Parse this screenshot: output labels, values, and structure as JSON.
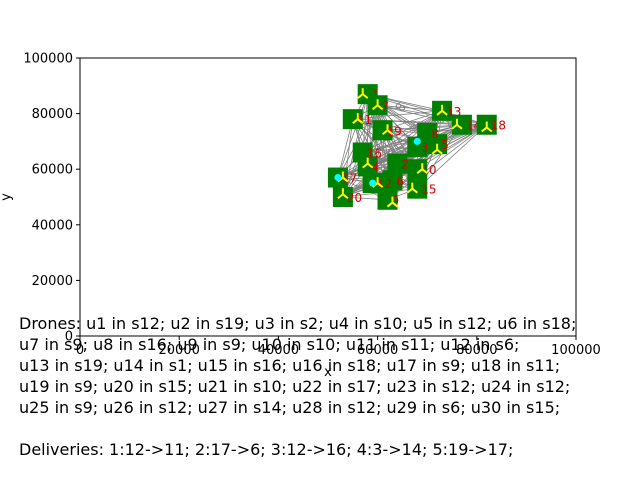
{
  "chart_data": {
    "type": "scatter",
    "title": "",
    "xlabel": "x",
    "ylabel": "y",
    "xlim": [
      0,
      100000
    ],
    "ylim": [
      0,
      100000
    ],
    "x_ticks": [
      "0",
      "20000",
      "40000",
      "60000",
      "80000",
      "100000"
    ],
    "y_ticks": [
      "0",
      "20000",
      "40000",
      "60000",
      "80000",
      "100000"
    ],
    "grid": false,
    "stations": [
      {
        "label": "1",
        "x": 58000,
        "y": 87000
      },
      {
        "label": "2",
        "x": 64000,
        "y": 62000
      },
      {
        "label": "3",
        "x": 68000,
        "y": 68000
      },
      {
        "label": "4",
        "x": 58000,
        "y": 61000
      },
      {
        "label": "5",
        "x": 72000,
        "y": 69000
      },
      {
        "label": "6",
        "x": 63000,
        "y": 56000
      },
      {
        "label": "7",
        "x": 60000,
        "y": 83000
      },
      {
        "label": "8",
        "x": 70000,
        "y": 73000
      },
      {
        "label": "9",
        "x": 62000,
        "y": 49000
      },
      {
        "label": "10",
        "x": 68000,
        "y": 60000
      },
      {
        "label": "11",
        "x": 55000,
        "y": 78000
      },
      {
        "label": "12",
        "x": 59000,
        "y": 55000
      },
      {
        "label": "13",
        "x": 73000,
        "y": 81000
      },
      {
        "label": "14",
        "x": 77000,
        "y": 76000
      },
      {
        "label": "15",
        "x": 68000,
        "y": 53000
      },
      {
        "label": "16",
        "x": 57000,
        "y": 66000
      },
      {
        "label": "17",
        "x": 52000,
        "y": 57000
      },
      {
        "label": "18",
        "x": 82000,
        "y": 76000
      },
      {
        "label": "19",
        "x": 61000,
        "y": 74000
      },
      {
        "label": "20",
        "x": 53000,
        "y": 50000
      }
    ],
    "station_color": "#008000",
    "station_label_color": "#d40000",
    "edge_color": "#808080",
    "drone_marker_color": "#ffff00",
    "drone_accent_color": "#00ffff",
    "drones": [
      {
        "x": 57000,
        "y": 87000
      },
      {
        "x": 62000,
        "y": 74000
      },
      {
        "x": 53000,
        "y": 57000
      },
      {
        "x": 69000,
        "y": 60000
      },
      {
        "x": 72000,
        "y": 67000
      },
      {
        "x": 60000,
        "y": 55000
      },
      {
        "x": 63000,
        "y": 48000
      },
      {
        "x": 56000,
        "y": 78000
      },
      {
        "x": 67000,
        "y": 53000
      },
      {
        "x": 82000,
        "y": 75000
      },
      {
        "x": 58000,
        "y": 62000
      },
      {
        "x": 60000,
        "y": 83000
      },
      {
        "x": 73000,
        "y": 81000
      },
      {
        "x": 76000,
        "y": 76000
      },
      {
        "x": 53000,
        "y": 51000
      }
    ],
    "cyan_points": [
      {
        "x": 68000,
        "y": 70000
      },
      {
        "x": 59000,
        "y": 55000
      },
      {
        "x": 52000,
        "y": 57000
      }
    ],
    "edge_labels": [
      "5",
      "6",
      "5",
      "9",
      "2",
      "0",
      "8",
      "2",
      "5",
      "6",
      "8",
      "5"
    ]
  },
  "caption": {
    "drones": "Drones: u1 in s12; u2 in s19; u3 in s2; u4 in s10; u5 in s12; u6 in s18;\nu7 in s9; u8 in s16; u9 in s9; u10 in s10; u11 in s11; u12 in s6;\nu13 in s19; u14 in s1; u15 in s16; u16 in s18; u17 in s9; u18 in s11;\nu19 in s9; u20 in s15; u21 in s10; u22 in s17; u23 in s12; u24 in s12;\nu25 in s9; u26 in s12; u27 in s14; u28 in s12; u29 in s6; u30 in s15;",
    "deliveries": "Deliveries: 1:12->11; 2:17->6; 3:12->16; 4:3->14; 5:19->17;"
  }
}
